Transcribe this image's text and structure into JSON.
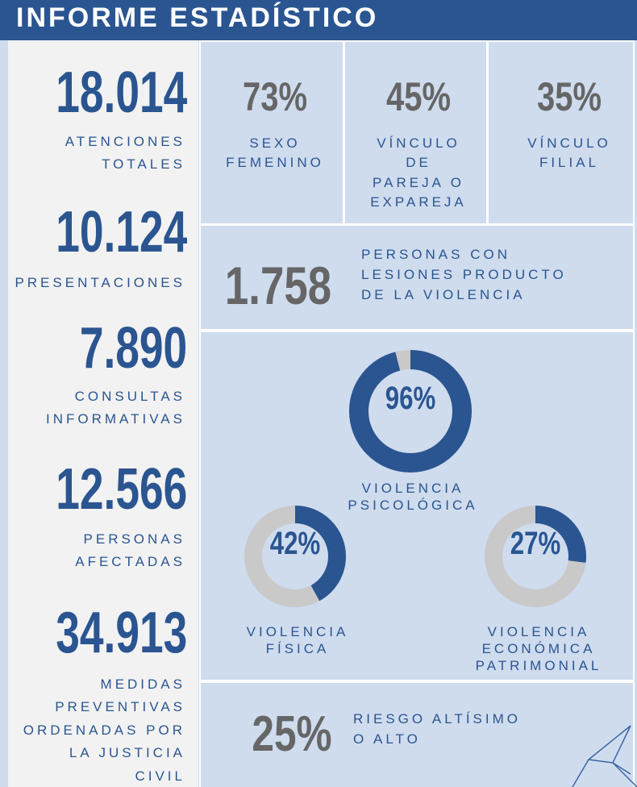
{
  "header": {
    "title": "INFORME ESTADÍSTICO"
  },
  "stats": [
    {
      "number": "18.014",
      "label_lines": [
        "ATENCIONES",
        "TOTALES"
      ]
    },
    {
      "number": "10.124",
      "label_lines": [
        "PRESENTACIONES"
      ]
    },
    {
      "number": "7.890",
      "label_lines": [
        "CONSULTAS",
        "INFORMATIVAS"
      ]
    },
    {
      "number": "12.566",
      "label_lines": [
        "PERSONAS",
        "AFECTADAS"
      ]
    },
    {
      "number": "34.913",
      "label_lines": [
        "MEDIDAS",
        "PREVENTIVAS",
        "ORDENADAS POR",
        "LA JUSTICIA",
        "CIVIL"
      ]
    }
  ],
  "tiles": [
    {
      "value": "73%",
      "label_lines": [
        "SEXO",
        "FEMENINO"
      ]
    },
    {
      "value": "45%",
      "label_lines": [
        "VÍNCULO",
        "DE",
        "PAREJA O",
        "EXPAREJA"
      ]
    },
    {
      "value": "35%",
      "label_lines": [
        "VÍNCULO",
        "FILIAL"
      ]
    }
  ],
  "injuries": {
    "value": "1.758",
    "label_lines": [
      "PERSONAS CON",
      "LESIONES PRODUCTO",
      "DE LA VIOLENCIA"
    ]
  },
  "donuts": [
    {
      "value": 96,
      "label": "96%",
      "caption_lines": [
        "VIOLENCIA",
        "PSICOLÓGICA"
      ]
    },
    {
      "value": 42,
      "label": "42%",
      "caption_lines": [
        "VIOLENCIA",
        "FÍSICA"
      ]
    },
    {
      "value": 27,
      "label": "27%",
      "caption_lines": [
        "VIOLENCIA",
        "ECONÓMICA",
        "PATRIMONIAL"
      ]
    }
  ],
  "risk": {
    "value": "25%",
    "label_lines": [
      "RIESGO ALTÍSIMO",
      "O ALTO"
    ]
  }
}
